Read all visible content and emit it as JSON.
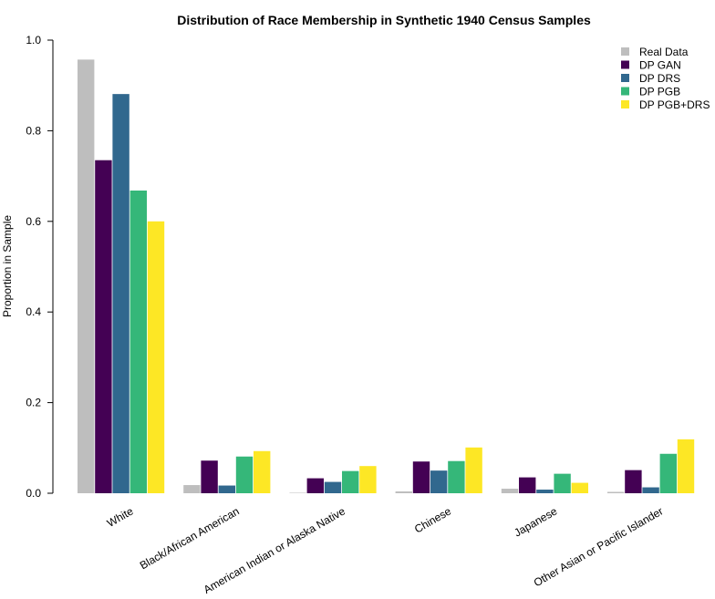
{
  "chart_data": {
    "type": "bar",
    "title": "Distribution of Race Membership in Synthetic 1940 Census Samples",
    "xlabel": "",
    "ylabel": "Proportion in Sample",
    "ylim": [
      0,
      1.0
    ],
    "yticks": [
      "0.0",
      "0.2",
      "0.4",
      "0.6",
      "0.8",
      "1.0"
    ],
    "categories": [
      "White",
      "Black/African American",
      "American Indian or Alaska Native",
      "Chinese",
      "Japanese",
      "Other Asian or Pacific Islander"
    ],
    "series": [
      {
        "name": "Real Data",
        "color": "#bebebe",
        "values": [
          0.957,
          0.018,
          0.001,
          0.004,
          0.01,
          0.003
        ]
      },
      {
        "name": "DP GAN",
        "color": "#440154",
        "values": [
          0.735,
          0.072,
          0.033,
          0.07,
          0.035,
          0.051
        ]
      },
      {
        "name": "DP DRS",
        "color": "#31688e",
        "values": [
          0.881,
          0.017,
          0.025,
          0.05,
          0.008,
          0.013
        ]
      },
      {
        "name": "DP PGB",
        "color": "#35b779",
        "values": [
          0.668,
          0.081,
          0.049,
          0.071,
          0.043,
          0.087
        ]
      },
      {
        "name": "DP PGB+DRS",
        "color": "#fde725",
        "values": [
          0.6,
          0.093,
          0.06,
          0.101,
          0.023,
          0.119
        ]
      }
    ],
    "legend_position": "top-right",
    "grid": false
  }
}
